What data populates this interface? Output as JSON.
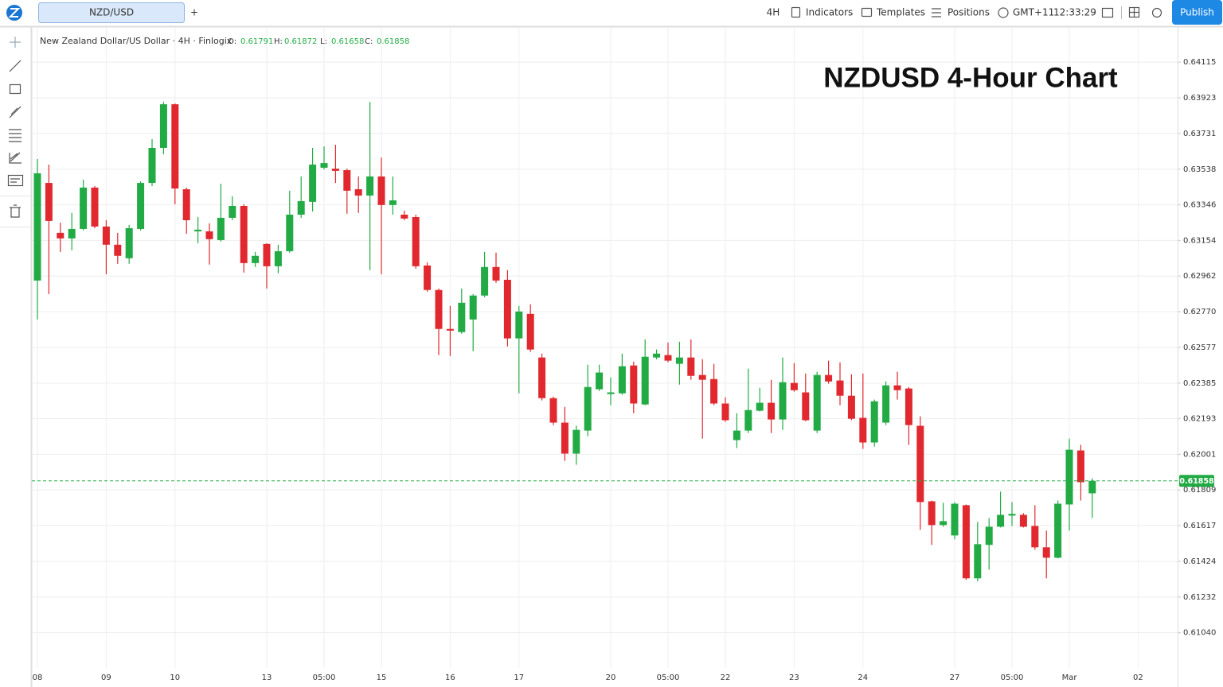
{
  "toolbar": {
    "symbol_tab": "NZD/USD",
    "add_tab": "+",
    "interval": "4H",
    "indicators": "Indicators",
    "templates": "Templates",
    "positions": "Positions",
    "timezone": "GMT+11",
    "clock": "12:33:29",
    "publish": "Publish"
  },
  "chart_data": {
    "type": "candlestick",
    "title": "NZDUSD 4-Hour Chart",
    "subtitle": "New Zealand Dollar/US Dollar · 4H · Finlogix",
    "ohlc_labels": [
      "O:",
      "H:",
      "L:",
      "C:"
    ],
    "up_color": "#22ab45",
    "down_color": "#e0282e",
    "grid": true,
    "categories": [
      "08",
      null,
      null,
      null,
      null,
      null,
      "09",
      null,
      null,
      null,
      null,
      null,
      "10",
      null,
      null,
      null,
      null,
      null,
      null,
      null,
      "13",
      null,
      null,
      null,
      null,
      "05:00",
      null,
      null,
      null,
      null,
      "15",
      null,
      null,
      null,
      null,
      null,
      "16",
      null,
      null,
      null,
      null,
      null,
      "17",
      null,
      null,
      null,
      null,
      null,
      null,
      null,
      "20",
      null,
      null,
      null,
      null,
      "05:00",
      null,
      null,
      null,
      null,
      "22",
      null,
      null,
      null,
      null,
      null,
      "23",
      null,
      null,
      null,
      null,
      null,
      "24",
      null,
      null,
      null,
      null,
      null,
      null,
      null,
      "27",
      null,
      null,
      null,
      null,
      "05:00",
      null,
      null,
      null,
      null,
      "Mar",
      null,
      null,
      null,
      null,
      null,
      "02"
    ],
    "open": [
      0.62938,
      0.63464,
      0.63195,
      0.63165,
      0.63216,
      0.63439,
      0.63229,
      0.63131,
      0.63058,
      0.63216,
      0.63464,
      0.63653,
      0.63888,
      0.6343,
      0.63203,
      0.63203,
      0.63156,
      0.63276,
      0.6334,
      0.63032,
      0.63135,
      0.63015,
      0.63096,
      0.63293,
      0.63362,
      0.63546,
      0.63541,
      0.63533,
      0.6343,
      0.63396,
      0.63499,
      0.63345,
      0.63293,
      0.6328,
      0.63019,
      0.62887,
      0.62677,
      0.6266,
      0.62728,
      0.62857,
      0.63011,
      0.62942,
      0.62626,
      0.62758,
      0.62523,
      0.62304,
      0.62172,
      0.62005,
      0.62129,
      0.62352,
      0.62326,
      0.6233,
      0.6248,
      0.6227,
      0.62523,
      0.62536,
      0.62489,
      0.62523,
      0.62429,
      0.62407,
      0.62275,
      0.62078,
      0.62129,
      0.62236,
      0.62279,
      0.62189,
      0.62386,
      0.62335,
      0.62129,
      0.62429,
      0.62399,
      0.62317,
      0.62198,
      0.62065,
      0.62172,
      0.62373,
      0.62356,
      0.62155,
      0.61748,
      0.6162,
      0.61564,
      0.61727,
      0.61333,
      0.61513,
      0.61611,
      0.61671,
      0.61675,
      0.61615,
      0.615,
      0.61444,
      0.61731,
      0.62022,
      0.61791,
      null,
      null,
      null,
      null
    ],
    "high": [
      0.63593,
      0.63563,
      0.6325,
      0.63302,
      0.63482,
      0.63447,
      0.63263,
      0.63195,
      0.63238,
      0.63473,
      0.637,
      0.63901,
      0.63892,
      0.63439,
      0.6328,
      0.63246,
      0.6346,
      0.63392,
      0.63349,
      0.63092,
      0.63139,
      0.63131,
      0.63422,
      0.63499,
      0.63653,
      0.63661,
      0.6367,
      0.63541,
      0.63499,
      0.63901,
      0.63601,
      0.63499,
      0.63315,
      0.63293,
      0.63036,
      0.62895,
      0.62801,
      0.62895,
      0.62865,
      0.63092,
      0.63088,
      0.62994,
      0.62801,
      0.6281,
      0.62544,
      0.62313,
      0.62257,
      0.62155,
      0.62484,
      0.62484,
      0.62416,
      0.62544,
      0.62501,
      0.62621,
      0.62566,
      0.62604,
      0.62608,
      0.62621,
      0.62514,
      0.62489,
      0.62309,
      0.62223,
      0.62463,
      0.6236,
      0.62403,
      0.62523,
      0.62493,
      0.62437,
      0.62446,
      0.62506,
      0.62497,
      0.62433,
      0.62437,
      0.62296,
      0.62394,
      0.62446,
      0.62364,
      0.62206,
      0.61752,
      0.6174,
      0.61744,
      0.61731,
      0.61637,
      0.61658,
      0.618,
      0.61744,
      0.61684,
      0.61727,
      0.6159,
      0.61752,
      0.62086,
      0.62052,
      0.61872,
      null,
      null,
      null,
      null
    ],
    "low": [
      0.62728,
      0.62865,
      0.63092,
      0.63101,
      0.63208,
      0.6322,
      0.62972,
      0.63028,
      0.63028,
      0.63208,
      0.63447,
      0.63618,
      0.63349,
      0.6319,
      0.63139,
      0.63024,
      0.63148,
      0.63263,
      0.62981,
      0.63011,
      0.62895,
      0.62977,
      0.63088,
      0.63276,
      0.6331,
      0.63537,
      0.63464,
      0.63298,
      0.63302,
      0.62994,
      0.62972,
      0.63293,
      0.63263,
      0.63002,
      0.62878,
      0.62536,
      0.62531,
      0.62651,
      0.62557,
      0.62848,
      0.62925,
      0.62583,
      0.6233,
      0.62553,
      0.62292,
      0.62159,
      0.61966,
      0.61945,
      0.62099,
      0.62343,
      0.62266,
      0.62322,
      0.62223,
      0.62266,
      0.62514,
      0.62497,
      0.62377,
      0.62403,
      0.62086,
      0.62266,
      0.62176,
      0.62035,
      0.62116,
      0.62232,
      0.62116,
      0.62133,
      0.62339,
      0.6218,
      0.62116,
      0.62382,
      0.62266,
      0.62185,
      0.62031,
      0.62043,
      0.62159,
      0.62296,
      0.62052,
      0.61594,
      0.61513,
      0.61611,
      0.61543,
      0.61324,
      0.61316,
      0.6138,
      0.61607,
      0.61615,
      0.61607,
      0.61487,
      0.61333,
      0.6144,
      0.6159,
      0.61752,
      0.61658,
      null,
      null,
      null,
      null
    ],
    "close": [
      0.63516,
      0.63259,
      0.63165,
      0.63216,
      0.63439,
      0.63229,
      0.63131,
      0.63071,
      0.6322,
      0.63464,
      0.63653,
      0.63888,
      0.63434,
      0.63263,
      0.63212,
      0.63161,
      0.63276,
      0.6334,
      0.63032,
      0.63071,
      0.63015,
      0.63096,
      0.63293,
      0.63366,
      0.63563,
      0.63571,
      0.63529,
      0.63422,
      0.63396,
      0.63499,
      0.63345,
      0.6337,
      0.63272,
      0.63015,
      0.62887,
      0.62677,
      0.62668,
      0.62818,
      0.62857,
      0.63011,
      0.62938,
      0.62626,
      0.62771,
      0.62566,
      0.62304,
      0.62172,
      0.62005,
      0.62133,
      0.62364,
      0.62442,
      0.62335,
      0.62476,
      0.62275,
      0.62527,
      0.62544,
      0.62506,
      0.62523,
      0.62424,
      0.62403,
      0.62275,
      0.62185,
      0.62129,
      0.6224,
      0.62279,
      0.62189,
      0.6239,
      0.62347,
      0.62185,
      0.62429,
      0.62394,
      0.62317,
      0.62193,
      0.62065,
      0.62287,
      0.62373,
      0.62347,
      0.62159,
      0.61744,
      0.6162,
      0.61641,
      0.61735,
      0.61333,
      0.61517,
      0.61611,
      0.61675,
      0.6168,
      0.61611,
      0.615,
      0.61444,
      0.61735,
      0.62026,
      0.61851,
      0.61858,
      null,
      null,
      null,
      null
    ],
    "ylim": [
      0.6085,
      0.643
    ],
    "yticks": [
      {
        "value": 0.6104,
        "label": "0.61040"
      },
      0.61232,
      0.61424,
      0.61617,
      0.61809,
      0.62001,
      0.62193,
      0.62385,
      0.62577,
      {
        "value": 0.6277,
        "label": "0.62770"
      },
      0.62962,
      0.63154,
      0.63346,
      0.63538,
      0.63731,
      0.63923,
      0.64115
    ]
  }
}
